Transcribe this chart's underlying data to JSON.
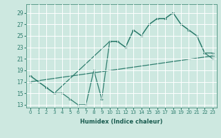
{
  "xlabel": "Humidex (Indice chaleur)",
  "background_color": "#cde8e0",
  "line_color": "#2e7d6e",
  "grid_color": "#ffffff",
  "xlim": [
    -0.5,
    23.5
  ],
  "ylim": [
    12.5,
    30.5
  ],
  "yticks": [
    13,
    15,
    17,
    19,
    21,
    23,
    25,
    27,
    29
  ],
  "xticks": [
    0,
    1,
    2,
    3,
    4,
    5,
    6,
    7,
    8,
    9,
    10,
    11,
    12,
    13,
    14,
    15,
    16,
    17,
    18,
    19,
    20,
    21,
    22,
    23
  ],
  "line1_x": [
    0,
    1,
    2,
    3,
    4,
    5,
    6,
    7,
    8,
    9,
    10,
    11,
    12,
    13,
    14,
    15,
    16,
    17,
    18,
    19,
    20,
    21,
    22,
    23
  ],
  "line1_y": [
    18,
    17,
    16,
    15,
    15,
    14,
    13,
    13,
    19,
    14,
    24,
    24,
    23,
    26,
    25,
    27,
    28,
    28,
    29,
    27,
    26,
    25,
    22,
    22
  ],
  "line2_x": [
    0,
    2,
    3,
    10,
    11,
    12,
    13,
    14,
    15,
    16,
    17,
    18,
    19,
    20,
    21,
    22,
    23
  ],
  "line2_y": [
    18,
    16,
    15,
    24,
    24,
    23,
    26,
    25,
    27,
    28,
    28,
    29,
    27,
    26,
    25,
    22,
    21
  ],
  "line3_x": [
    0,
    1,
    2,
    3,
    4,
    5,
    6,
    7,
    8,
    9,
    10,
    11,
    12,
    13,
    14,
    15,
    16,
    17,
    18,
    19,
    20,
    21,
    22,
    23
  ],
  "line3_y": [
    17.0,
    17.2,
    17.4,
    17.6,
    17.8,
    18.0,
    18.2,
    18.4,
    18.6,
    18.8,
    19.0,
    19.2,
    19.4,
    19.6,
    19.8,
    20.0,
    20.2,
    20.4,
    20.6,
    20.8,
    21.0,
    21.2,
    21.4,
    21.6
  ]
}
